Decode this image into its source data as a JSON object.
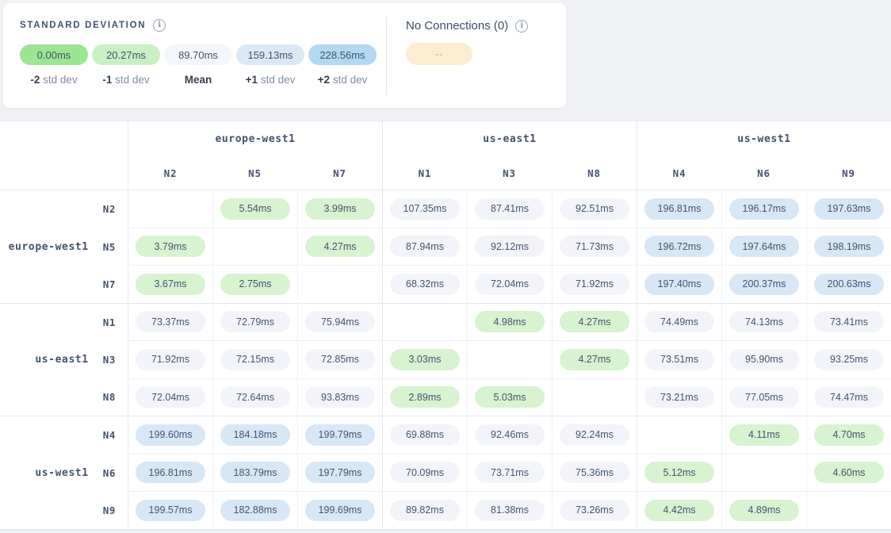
{
  "legend": {
    "title": "STANDARD DEVIATION",
    "buckets": [
      {
        "value": "0.00ms",
        "label_bold": "-2",
        "label_rest": "std dev",
        "color": "#9de595"
      },
      {
        "value": "20.27ms",
        "label_bold": "-1",
        "label_rest": "std dev",
        "color": "#c9f0c3"
      },
      {
        "value": "89.70ms",
        "label_bold": "Mean",
        "label_rest": "",
        "color": "#f3f6fa"
      },
      {
        "value": "159.13ms",
        "label_bold": "+1",
        "label_rest": "std dev",
        "color": "#dbe9f7"
      },
      {
        "value": "228.56ms",
        "label_bold": "+2",
        "label_rest": "std dev",
        "color": "#b4d8f2"
      }
    ]
  },
  "no_connections": {
    "title": "No Connections (0)",
    "pill_text": "--",
    "pill_color": "#fcedd2"
  },
  "tones": {
    "green": "#d7f3d0",
    "gray": "#f2f4f9",
    "blue": "#d7e7f6"
  },
  "matrix": {
    "col_groups": [
      {
        "region": "europe-west1",
        "nodes": [
          "N2",
          "N5",
          "N7"
        ]
      },
      {
        "region": "us-east1",
        "nodes": [
          "N1",
          "N3",
          "N8"
        ]
      },
      {
        "region": "us-west1",
        "nodes": [
          "N4",
          "N6",
          "N9"
        ]
      }
    ],
    "row_groups": [
      {
        "region": "europe-west1",
        "rows": [
          {
            "node": "N2",
            "cells": [
              null,
              {
                "v": "5.54ms",
                "t": "green"
              },
              {
                "v": "3.99ms",
                "t": "green"
              },
              {
                "v": "107.35ms",
                "t": "gray"
              },
              {
                "v": "87.41ms",
                "t": "gray"
              },
              {
                "v": "92.51ms",
                "t": "gray"
              },
              {
                "v": "196.81ms",
                "t": "blue"
              },
              {
                "v": "196.17ms",
                "t": "blue"
              },
              {
                "v": "197.63ms",
                "t": "blue"
              }
            ]
          },
          {
            "node": "N5",
            "cells": [
              {
                "v": "3.79ms",
                "t": "green"
              },
              null,
              {
                "v": "4.27ms",
                "t": "green"
              },
              {
                "v": "87.94ms",
                "t": "gray"
              },
              {
                "v": "92.12ms",
                "t": "gray"
              },
              {
                "v": "71.73ms",
                "t": "gray"
              },
              {
                "v": "196.72ms",
                "t": "blue"
              },
              {
                "v": "197.64ms",
                "t": "blue"
              },
              {
                "v": "198.19ms",
                "t": "blue"
              }
            ]
          },
          {
            "node": "N7",
            "cells": [
              {
                "v": "3.67ms",
                "t": "green"
              },
              {
                "v": "2.75ms",
                "t": "green"
              },
              null,
              {
                "v": "68.32ms",
                "t": "gray"
              },
              {
                "v": "72.04ms",
                "t": "gray"
              },
              {
                "v": "71.92ms",
                "t": "gray"
              },
              {
                "v": "197.40ms",
                "t": "blue"
              },
              {
                "v": "200.37ms",
                "t": "blue"
              },
              {
                "v": "200.63ms",
                "t": "blue"
              }
            ]
          }
        ]
      },
      {
        "region": "us-east1",
        "rows": [
          {
            "node": "N1",
            "cells": [
              {
                "v": "73.37ms",
                "t": "gray"
              },
              {
                "v": "72.79ms",
                "t": "gray"
              },
              {
                "v": "75.94ms",
                "t": "gray"
              },
              null,
              {
                "v": "4.98ms",
                "t": "green"
              },
              {
                "v": "4.27ms",
                "t": "green"
              },
              {
                "v": "74.49ms",
                "t": "gray"
              },
              {
                "v": "74.13ms",
                "t": "gray"
              },
              {
                "v": "73.41ms",
                "t": "gray"
              }
            ]
          },
          {
            "node": "N3",
            "cells": [
              {
                "v": "71.92ms",
                "t": "gray"
              },
              {
                "v": "72.15ms",
                "t": "gray"
              },
              {
                "v": "72.85ms",
                "t": "gray"
              },
              {
                "v": "3.03ms",
                "t": "green"
              },
              null,
              {
                "v": "4.27ms",
                "t": "green"
              },
              {
                "v": "73.51ms",
                "t": "gray"
              },
              {
                "v": "95.90ms",
                "t": "gray"
              },
              {
                "v": "93.25ms",
                "t": "gray"
              }
            ]
          },
          {
            "node": "N8",
            "cells": [
              {
                "v": "72.04ms",
                "t": "gray"
              },
              {
                "v": "72.64ms",
                "t": "gray"
              },
              {
                "v": "93.83ms",
                "t": "gray"
              },
              {
                "v": "2.89ms",
                "t": "green"
              },
              {
                "v": "5.03ms",
                "t": "green"
              },
              null,
              {
                "v": "73.21ms",
                "t": "gray"
              },
              {
                "v": "77.05ms",
                "t": "gray"
              },
              {
                "v": "74.47ms",
                "t": "gray"
              }
            ]
          }
        ]
      },
      {
        "region": "us-west1",
        "rows": [
          {
            "node": "N4",
            "cells": [
              {
                "v": "199.60ms",
                "t": "blue"
              },
              {
                "v": "184.18ms",
                "t": "blue"
              },
              {
                "v": "199.79ms",
                "t": "blue"
              },
              {
                "v": "69.88ms",
                "t": "gray"
              },
              {
                "v": "92.46ms",
                "t": "gray"
              },
              {
                "v": "92.24ms",
                "t": "gray"
              },
              null,
              {
                "v": "4.11ms",
                "t": "green"
              },
              {
                "v": "4.70ms",
                "t": "green"
              }
            ]
          },
          {
            "node": "N6",
            "cells": [
              {
                "v": "196.81ms",
                "t": "blue"
              },
              {
                "v": "183.79ms",
                "t": "blue"
              },
              {
                "v": "197.79ms",
                "t": "blue"
              },
              {
                "v": "70.09ms",
                "t": "gray"
              },
              {
                "v": "73.71ms",
                "t": "gray"
              },
              {
                "v": "75.36ms",
                "t": "gray"
              },
              {
                "v": "5.12ms",
                "t": "green"
              },
              null,
              {
                "v": "4.60ms",
                "t": "green"
              }
            ]
          },
          {
            "node": "N9",
            "cells": [
              {
                "v": "199.57ms",
                "t": "blue"
              },
              {
                "v": "182.88ms",
                "t": "blue"
              },
              {
                "v": "199.69ms",
                "t": "blue"
              },
              {
                "v": "89.82ms",
                "t": "gray"
              },
              {
                "v": "81.38ms",
                "t": "gray"
              },
              {
                "v": "73.26ms",
                "t": "gray"
              },
              {
                "v": "4.42ms",
                "t": "green"
              },
              {
                "v": "4.89ms",
                "t": "green"
              },
              null
            ]
          }
        ]
      }
    ]
  }
}
